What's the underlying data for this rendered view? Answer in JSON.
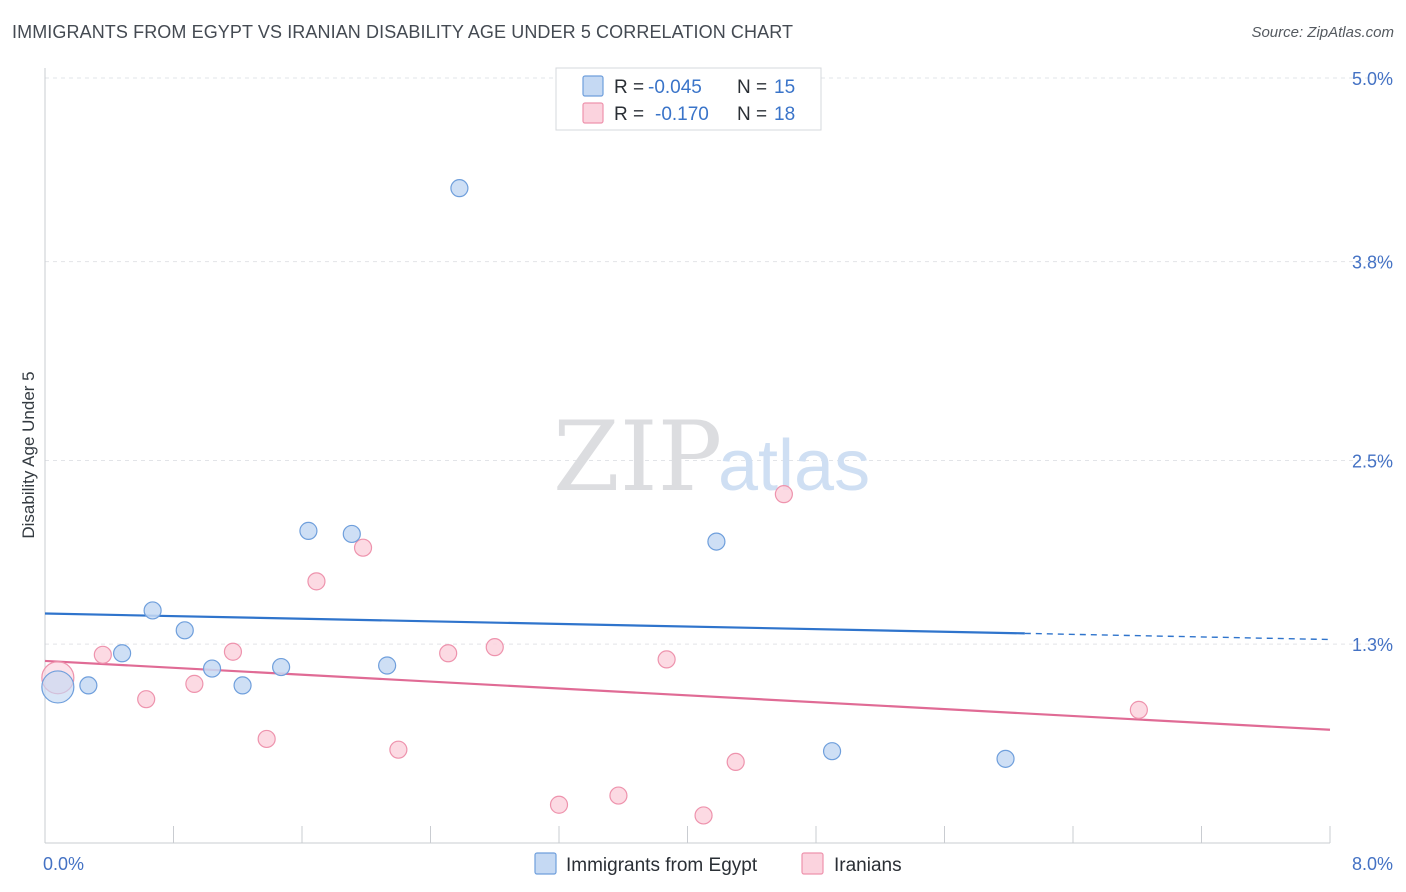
{
  "header": {
    "title": "IMMIGRANTS FROM EGYPT VS IRANIAN DISABILITY AGE UNDER 5 CORRELATION CHART",
    "source": "Source: ZipAtlas.com"
  },
  "watermark": {
    "zip": "ZIP",
    "atlas": "atlas"
  },
  "colors": {
    "egypt_fill": "#c5d9f3",
    "egypt_stroke": "#6f9fdc",
    "egypt_line": "#2f74cc",
    "iran_fill": "#fbd3de",
    "iran_stroke": "#ee93ad",
    "iran_line": "#e06b95",
    "grid": "#e2e4e8",
    "axis_tick_label": "#4472c4"
  },
  "legend_top": {
    "r_label": "R =",
    "n_label": "N =",
    "egypt": {
      "r": "-0.045",
      "n": "15"
    },
    "iran": {
      "r": "-0.170",
      "n": "18"
    }
  },
  "chart_data": {
    "type": "scatter",
    "title": "IMMIGRANTS FROM EGYPT VS IRANIAN DISABILITY AGE UNDER 5 CORRELATION CHART",
    "xlabel": "",
    "ylabel": "Disability Age Under 5",
    "xlim": [
      0.0,
      8.0
    ],
    "ylim": [
      0.0,
      5.0
    ],
    "x_tick_labels": {
      "min": "0.0%",
      "max": "8.0%"
    },
    "y_ticks": [
      {
        "value": 1.3,
        "label": "1.3%"
      },
      {
        "value": 2.5,
        "label": "2.5%"
      },
      {
        "value": 3.8,
        "label": "3.8%"
      },
      {
        "value": 5.0,
        "label": "5.0%"
      }
    ],
    "grid": true,
    "series": [
      {
        "name": "Immigrants from Egypt",
        "points": [
          {
            "x": 0.08,
            "y": 1.02,
            "size": 3
          },
          {
            "x": 0.27,
            "y": 1.03,
            "size": 1
          },
          {
            "x": 0.48,
            "y": 1.24,
            "size": 1
          },
          {
            "x": 0.67,
            "y": 1.52,
            "size": 1
          },
          {
            "x": 0.87,
            "y": 1.39,
            "size": 1
          },
          {
            "x": 1.04,
            "y": 1.14,
            "size": 1
          },
          {
            "x": 1.23,
            "y": 1.03,
            "size": 1
          },
          {
            "x": 1.47,
            "y": 1.15,
            "size": 1
          },
          {
            "x": 1.64,
            "y": 2.04,
            "size": 1
          },
          {
            "x": 1.91,
            "y": 2.02,
            "size": 1
          },
          {
            "x": 2.13,
            "y": 1.16,
            "size": 1
          },
          {
            "x": 2.58,
            "y": 4.28,
            "size": 1
          },
          {
            "x": 4.18,
            "y": 1.97,
            "size": 1
          },
          {
            "x": 4.9,
            "y": 0.6,
            "size": 1
          },
          {
            "x": 5.98,
            "y": 0.55,
            "size": 1
          }
        ],
        "trend": {
          "x0": 0.0,
          "y0": 1.5,
          "x1": 6.1,
          "y1": 1.37,
          "dash_to_x": 8.0,
          "dash_to_y": 1.33
        }
      },
      {
        "name": "Iranians",
        "points": [
          {
            "x": 0.08,
            "y": 1.08,
            "size": 3
          },
          {
            "x": 0.36,
            "y": 1.23,
            "size": 1
          },
          {
            "x": 0.63,
            "y": 0.94,
            "size": 1
          },
          {
            "x": 0.93,
            "y": 1.04,
            "size": 1
          },
          {
            "x": 1.17,
            "y": 1.25,
            "size": 1
          },
          {
            "x": 1.38,
            "y": 0.68,
            "size": 1
          },
          {
            "x": 1.69,
            "y": 1.71,
            "size": 1
          },
          {
            "x": 1.98,
            "y": 1.93,
            "size": 1
          },
          {
            "x": 2.2,
            "y": 0.61,
            "size": 1
          },
          {
            "x": 2.51,
            "y": 1.24,
            "size": 1
          },
          {
            "x": 2.8,
            "y": 1.28,
            "size": 1
          },
          {
            "x": 3.2,
            "y": 0.25,
            "size": 1
          },
          {
            "x": 3.57,
            "y": 0.31,
            "size": 1
          },
          {
            "x": 3.87,
            "y": 1.2,
            "size": 1
          },
          {
            "x": 4.1,
            "y": 0.18,
            "size": 1
          },
          {
            "x": 4.3,
            "y": 0.53,
            "size": 1
          },
          {
            "x": 4.6,
            "y": 2.28,
            "size": 1
          },
          {
            "x": 6.81,
            "y": 0.87,
            "size": 1
          }
        ],
        "trend": {
          "x0": 0.0,
          "y0": 1.19,
          "x1": 8.0,
          "y1": 0.74
        }
      }
    ],
    "legend": [
      "Immigrants from Egypt",
      "Iranians"
    ]
  }
}
